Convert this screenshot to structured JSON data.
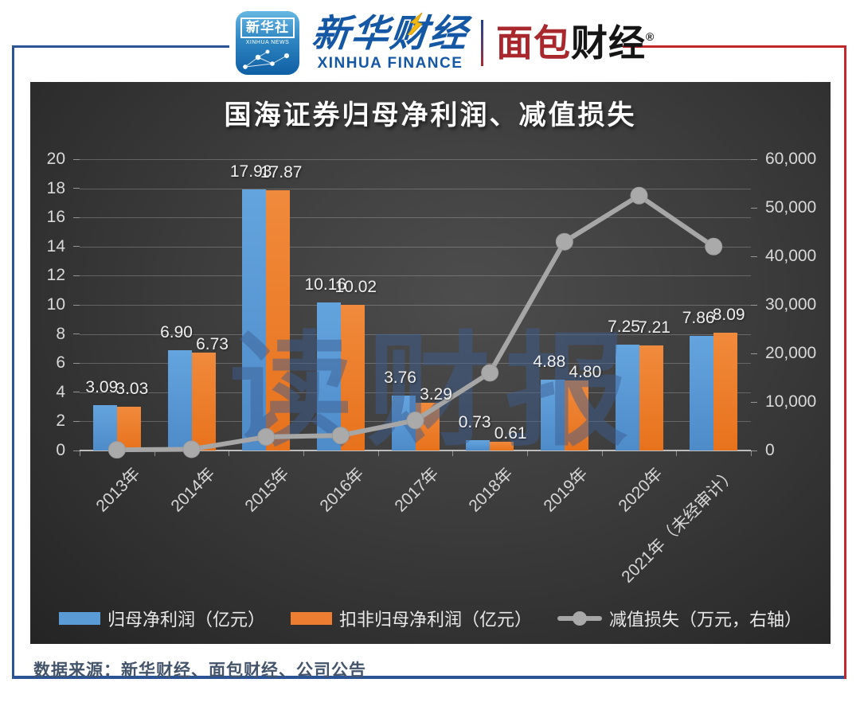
{
  "page": {
    "source": "数据来源：新华财经、面包财经、公司公告",
    "watermark": "读财报"
  },
  "header": {
    "app_icon": {
      "cn": "新华社",
      "en": "XINHUA NEWS"
    },
    "xinhua_finance": {
      "cn": "新华财经",
      "en": "XINHUA FINANCE"
    },
    "bread_finance": {
      "red": "面包",
      "black": "财经",
      "reg": "®"
    }
  },
  "chart_data": {
    "type": "combo: bar + line",
    "title": "国海证券归母净利润、减值损失",
    "categories": [
      "2013年",
      "2014年",
      "2015年",
      "2016年",
      "2017年",
      "2018年",
      "2019年",
      "2020年",
      "2021年（未经审计）"
    ],
    "series": [
      {
        "name": "归母净利润（亿元）",
        "chart": "bar",
        "axis": "left",
        "color": "#5B9BD5",
        "values": [
          3.09,
          6.9,
          17.93,
          10.16,
          3.76,
          0.73,
          4.88,
          7.25,
          7.86
        ],
        "labels": [
          "3.09",
          "6.90",
          "17.93",
          "10.16",
          "3.76",
          "0.73",
          "4.88",
          "7.25",
          "7.86"
        ]
      },
      {
        "name": "扣非归母净利润（亿元）",
        "chart": "bar",
        "axis": "left",
        "color": "#ED7D31",
        "values": [
          3.03,
          6.73,
          17.87,
          10.02,
          3.29,
          0.61,
          4.8,
          7.21,
          8.09
        ],
        "labels": [
          "3.03",
          "6.73",
          "17.87",
          "10.02",
          "3.29",
          "0.61",
          "4.80",
          "7.21",
          "8.09"
        ]
      },
      {
        "name": "减值损失（万元，右轴）",
        "chart": "line",
        "axis": "right",
        "color": "#A6A6A6",
        "values_estimated_from_pixels": true,
        "values": [
          150,
          250,
          2800,
          3100,
          6200,
          16000,
          43000,
          52500,
          42000
        ]
      }
    ],
    "left_axis": {
      "min": 0,
      "max": 20,
      "step": 2
    },
    "right_axis": {
      "min": 0,
      "max": 60000,
      "step": 10000,
      "tick_labels": [
        "0",
        "10,000",
        "20,000",
        "30,000",
        "40,000",
        "50,000",
        "60,000"
      ]
    },
    "grid": true,
    "legend_position": "bottom"
  },
  "colors": {
    "frame_blue": "#2b5496",
    "frame_red": "#c1272d",
    "panel_bg": "#3c3c3c",
    "bar_blue": "#5B9BD5",
    "bar_orange": "#ED7D31",
    "line_gray": "#A6A6A6",
    "axis_text": "#d9d9d9",
    "source_text": "#44546a"
  }
}
